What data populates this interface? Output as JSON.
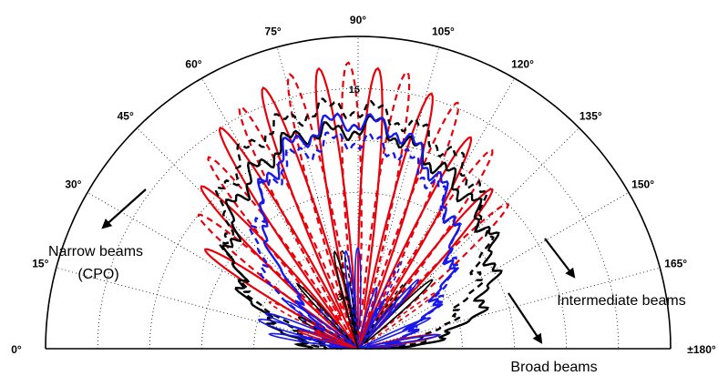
{
  "chart_data": {
    "type": "polar",
    "title": "",
    "angular_axis": {
      "range_deg": [
        0,
        180
      ],
      "tick_step_deg": 15,
      "tick_labels": [
        "0°",
        "15°",
        "30°",
        "45°",
        "60°",
        "75°",
        "90°",
        "105°",
        "120°",
        "135°",
        "150°",
        "165°",
        "±180°"
      ]
    },
    "radial_axis": {
      "range_dbi": [
        0,
        18
      ],
      "ticks": [
        3,
        6,
        9,
        12,
        15
      ],
      "tick_labels": [
        "3",
        "15"
      ]
    },
    "grid": true,
    "series": [
      {
        "color": "#e8000b",
        "style": "solid",
        "pattern": "lobes",
        "peak_angles_deg": [
          33,
          46,
          58,
          70,
          82,
          94,
          106,
          118,
          130
        ],
        "peak_gain_dbi": [
          10.5,
          13,
          15,
          16,
          16.3,
          16.2,
          15.3,
          13.8,
          12
        ],
        "beam_width_deg": 9.5
      },
      {
        "color": "#e8000b",
        "style": "dashed",
        "pattern": "lobes",
        "peak_angles_deg": [
          40,
          52,
          64,
          76,
          88,
          100,
          112,
          124,
          136
        ],
        "peak_gain_dbi": [
          12,
          14,
          15.5,
          16.3,
          16.5,
          16.2,
          15.3,
          13.8,
          12
        ],
        "beam_width_deg": 9.5
      },
      {
        "color": "#000000",
        "style": "solid",
        "pattern": "envelope",
        "gain_profile_deg_dbi": [
          [
            1,
            2.4
          ],
          [
            15,
            4.8
          ],
          [
            30,
            8
          ],
          [
            50,
            11
          ],
          [
            65,
            12.2
          ],
          [
            75,
            12.8
          ],
          [
            85,
            12.5
          ],
          [
            95,
            13
          ],
          [
            105,
            12
          ],
          [
            115,
            11.4
          ],
          [
            125,
            10.8
          ],
          [
            135,
            10.2
          ],
          [
            145,
            9.5
          ],
          [
            155,
            8.3
          ],
          [
            165,
            6.8
          ],
          [
            175,
            4
          ],
          [
            179,
            2.2
          ]
        ]
      },
      {
        "color": "#000000",
        "style": "dashed",
        "pattern": "envelope",
        "gain_profile_deg_dbi": [
          [
            1,
            1.6
          ],
          [
            15,
            3.2
          ],
          [
            30,
            7.8
          ],
          [
            50,
            12
          ],
          [
            65,
            13.5
          ],
          [
            80,
            14
          ],
          [
            95,
            13.7
          ],
          [
            110,
            12.8
          ],
          [
            125,
            11.7
          ],
          [
            140,
            9.5
          ],
          [
            155,
            7
          ],
          [
            165,
            5
          ],
          [
            175,
            3
          ],
          [
            179,
            1.8
          ]
        ]
      },
      {
        "color": "#1818e8",
        "style": "solid",
        "pattern": "envelope",
        "gain_profile_deg_dbi": [
          [
            1,
            0.9
          ],
          [
            15,
            1.5
          ],
          [
            25,
            2
          ],
          [
            40,
            4.2
          ],
          [
            55,
            10
          ],
          [
            70,
            12.2
          ],
          [
            85,
            13.2
          ],
          [
            100,
            12.8
          ],
          [
            115,
            10.8
          ],
          [
            130,
            8.5
          ],
          [
            145,
            5.8
          ],
          [
            160,
            3.2
          ],
          [
            172,
            2.2
          ],
          [
            179,
            1.4
          ]
        ]
      },
      {
        "color": "#1818e8",
        "style": "dashed",
        "pattern": "envelope",
        "gain_profile_deg_dbi": [
          [
            1,
            0.7
          ],
          [
            15,
            1.3
          ],
          [
            25,
            2.4
          ],
          [
            40,
            7.2
          ],
          [
            55,
            10
          ],
          [
            70,
            11.6
          ],
          [
            85,
            12.1
          ],
          [
            100,
            11.7
          ],
          [
            115,
            10.4
          ],
          [
            130,
            8.6
          ],
          [
            145,
            6.2
          ],
          [
            160,
            3.4
          ],
          [
            172,
            1.8
          ],
          [
            179,
            1
          ]
        ]
      }
    ],
    "annotations": [
      {
        "text": "Narrow beams",
        "arrow_angle_deg": 32
      },
      {
        "text": "(CPO)"
      },
      {
        "text": "Intermediate beams",
        "arrow_angle_deg": 160
      },
      {
        "text": "Broad beams",
        "arrow_angle_deg": 168
      }
    ],
    "legend": "none"
  }
}
